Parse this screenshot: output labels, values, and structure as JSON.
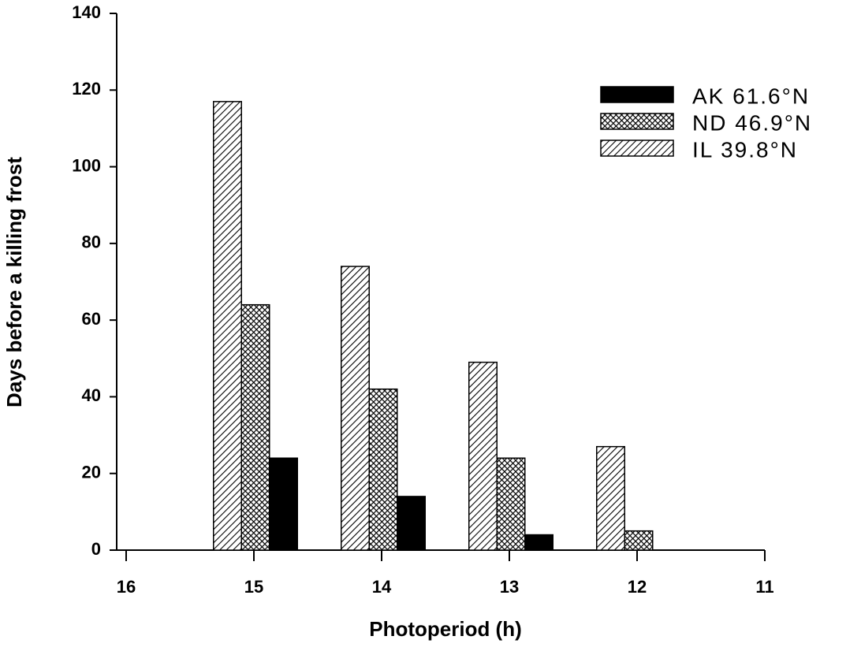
{
  "chart_data": {
    "type": "bar",
    "xlabel": "Photoperiod (h)",
    "ylabel": "Days before a killing frost",
    "x": [
      15,
      14,
      13,
      12
    ],
    "series": [
      {
        "name": "AK 61.6°N",
        "color": "#000000",
        "fill": "solid",
        "values": [
          24,
          14,
          4,
          0
        ]
      },
      {
        "name": "ND 46.9°N",
        "color": "#000000",
        "fill": "crosshatch",
        "values": [
          64,
          42,
          24,
          5
        ]
      },
      {
        "name": "IL 39.8°N",
        "color": "#000000",
        "fill": "diagonal",
        "values": [
          117,
          74,
          49,
          27
        ]
      }
    ],
    "xlim": [
      16,
      11
    ],
    "xticks": [
      16,
      15,
      14,
      13,
      12,
      11
    ],
    "ylim": [
      0,
      140
    ],
    "yticks": [
      0,
      20,
      40,
      60,
      80,
      100,
      120,
      140
    ],
    "legend": "upper right"
  }
}
